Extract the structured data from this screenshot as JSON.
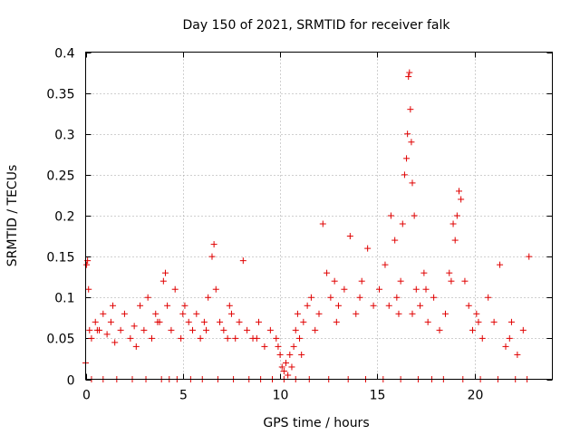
{
  "chart_data": {
    "type": "scatter",
    "title": "Day 150 of 2021, SRMTID for receiver falk",
    "xlabel": "GPS time / hours",
    "ylabel": "SRMTID / TECUs",
    "xlim": [
      0,
      24
    ],
    "ylim": [
      0,
      0.4
    ],
    "xticks": [
      0,
      5,
      10,
      15,
      20
    ],
    "xtick_labels": [
      "0",
      "5",
      "10",
      "15",
      "20"
    ],
    "yticks": [
      0,
      0.05,
      0.1,
      0.15,
      0.2,
      0.25,
      0.3,
      0.35,
      0.4
    ],
    "ytick_labels": [
      "0",
      "0.05",
      "0.1",
      "0.15",
      "0.2",
      "0.25",
      "0.3",
      "0.35",
      "0.4"
    ],
    "grid": true,
    "marker": "plus",
    "series": [
      {
        "name": "SRMTID",
        "color": "#e00000",
        "x": [
          0.0,
          0.05,
          0.1,
          0.15,
          0.2,
          0.3,
          0.5,
          0.7,
          0.9,
          1.1,
          1.3,
          1.5,
          1.8,
          2.0,
          2.3,
          2.5,
          2.8,
          3.0,
          3.2,
          3.4,
          3.6,
          3.8,
          4.0,
          4.1,
          4.2,
          4.4,
          4.6,
          4.9,
          5.1,
          5.3,
          5.5,
          5.7,
          5.9,
          6.1,
          6.3,
          6.5,
          6.6,
          6.7,
          6.9,
          7.1,
          7.3,
          7.5,
          7.7,
          7.9,
          8.1,
          8.3,
          8.6,
          8.9,
          9.2,
          9.5,
          9.8,
          10.0,
          10.1,
          10.2,
          10.3,
          10.4,
          10.5,
          10.6,
          10.7,
          10.8,
          10.9,
          11.0,
          11.2,
          11.4,
          11.6,
          11.8,
          12.0,
          12.2,
          12.4,
          12.6,
          12.8,
          13.0,
          13.3,
          13.6,
          13.9,
          14.2,
          14.5,
          14.8,
          15.1,
          15.4,
          15.7,
          15.9,
          16.0,
          16.1,
          16.2,
          16.3,
          16.4,
          16.5,
          16.55,
          16.6,
          16.65,
          16.7,
          16.75,
          16.8,
          16.9,
          17.0,
          17.2,
          17.4,
          17.6,
          17.9,
          18.2,
          18.5,
          18.7,
          18.9,
          19.0,
          19.1,
          19.2,
          19.3,
          19.5,
          19.7,
          19.9,
          20.1,
          20.4,
          20.7,
          21.0,
          21.3,
          21.6,
          21.9,
          22.2,
          22.5,
          22.8,
          0.3,
          0.9,
          1.6,
          2.4,
          3.1,
          3.9,
          4.3,
          4.7,
          5.4,
          6.0,
          6.8,
          7.6,
          8.4,
          9.0,
          9.6,
          10.2,
          10.8,
          11.5,
          12.5,
          13.5,
          14.4,
          15.3,
          16.2,
          17.1,
          17.8,
          18.4,
          19.4,
          20.3,
          21.2,
          22.1,
          22.7,
          0.6,
          1.4,
          2.6,
          3.7,
          5.0,
          6.2,
          7.4,
          8.8,
          9.9,
          11.1,
          12.9,
          14.1,
          15.6,
          16.8,
          17.5,
          18.8,
          20.2,
          21.8
        ],
        "y": [
          0.02,
          0.14,
          0.145,
          0.11,
          0.06,
          0.05,
          0.07,
          0.06,
          0.08,
          0.055,
          0.07,
          0.045,
          0.06,
          0.08,
          0.05,
          0.065,
          0.09,
          0.06,
          0.1,
          0.05,
          0.08,
          0.07,
          0.12,
          0.13,
          0.09,
          0.06,
          0.11,
          0.05,
          0.09,
          0.07,
          0.06,
          0.08,
          0.05,
          0.07,
          0.1,
          0.15,
          0.165,
          0.11,
          0.07,
          0.06,
          0.05,
          0.08,
          0.05,
          0.07,
          0.145,
          0.06,
          0.05,
          0.07,
          0.04,
          0.06,
          0.05,
          0.03,
          0.015,
          0.01,
          0.02,
          0.005,
          0.03,
          0.015,
          0.04,
          0.06,
          0.08,
          0.05,
          0.07,
          0.09,
          0.1,
          0.06,
          0.08,
          0.19,
          0.13,
          0.1,
          0.12,
          0.09,
          0.11,
          0.175,
          0.08,
          0.12,
          0.16,
          0.09,
          0.11,
          0.14,
          0.2,
          0.17,
          0.1,
          0.08,
          0.12,
          0.19,
          0.25,
          0.27,
          0.3,
          0.37,
          0.375,
          0.33,
          0.29,
          0.24,
          0.2,
          0.11,
          0.09,
          0.13,
          0.07,
          0.1,
          0.06,
          0.08,
          0.13,
          0.19,
          0.17,
          0.2,
          0.23,
          0.22,
          0.12,
          0.09,
          0.06,
          0.08,
          0.05,
          0.1,
          0.07,
          0.14,
          0.04,
          0.07,
          0.03,
          0.06,
          0.15,
          0.0,
          0.0,
          0.0,
          0.0,
          0.0,
          0.0,
          0.0,
          0.0,
          0.0,
          0.0,
          0.0,
          0.0,
          0.0,
          0.0,
          0.0,
          0.0,
          0.0,
          0.0,
          0.0,
          0.0,
          0.0,
          0.0,
          0.0,
          0.0,
          0.0,
          0.0,
          0.0,
          0.0,
          0.0,
          0.0,
          0.0,
          0.06,
          0.09,
          0.04,
          0.07,
          0.08,
          0.06,
          0.09,
          0.05,
          0.04,
          0.03,
          0.07,
          0.1,
          0.09,
          0.08,
          0.11,
          0.12,
          0.07,
          0.05
        ]
      }
    ]
  }
}
